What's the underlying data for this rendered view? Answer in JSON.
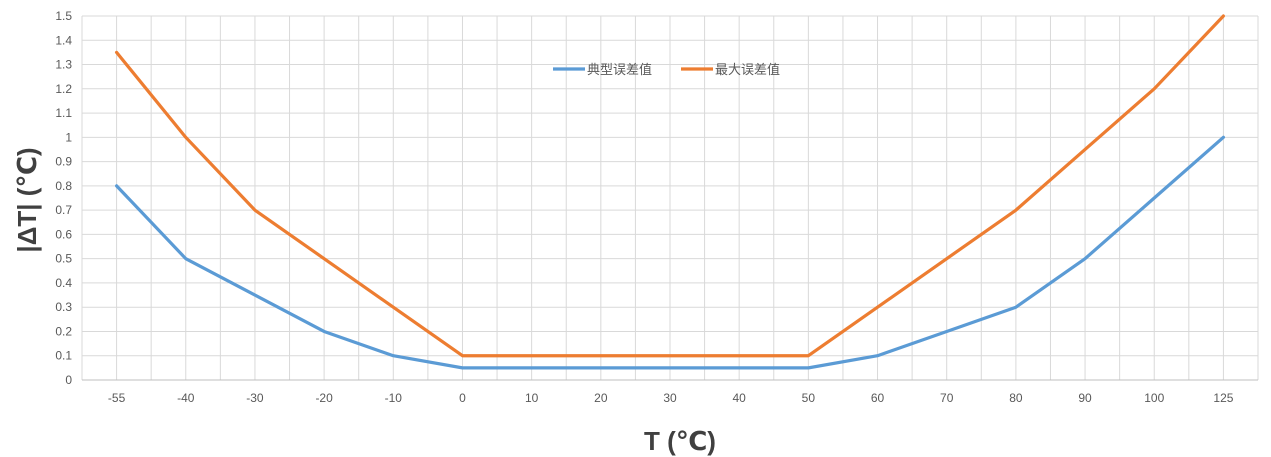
{
  "chart_data": {
    "type": "line",
    "xlabel": "T (℃)",
    "ylabel": "|ΔT| (℃)",
    "categories": [
      "-55",
      "-40",
      "-30",
      "-20",
      "-10",
      "0",
      "10",
      "20",
      "30",
      "40",
      "50",
      "60",
      "70",
      "80",
      "90",
      "100",
      "125"
    ],
    "ylim": [
      0,
      1.5
    ],
    "yticks": [
      "0",
      "0.1",
      "0.2",
      "0.3",
      "0.4",
      "0.5",
      "0.6",
      "0.7",
      "0.8",
      "0.9",
      "1",
      "1.1",
      "1.2",
      "1.3",
      "1.4",
      "1.5"
    ],
    "grid": true,
    "legend_position": "top-center",
    "series": [
      {
        "name": "典型误差值",
        "color": "#5B9BD5",
        "values": [
          0.8,
          0.5,
          0.35,
          0.2,
          0.1,
          0.05,
          0.05,
          0.05,
          0.05,
          0.05,
          0.05,
          0.1,
          0.2,
          0.3,
          0.5,
          0.75,
          1.0
        ]
      },
      {
        "name": "最大误差值",
        "color": "#ED7D31",
        "values": [
          1.35,
          1.0,
          0.7,
          0.5,
          0.3,
          0.1,
          0.1,
          0.1,
          0.1,
          0.1,
          0.1,
          0.3,
          0.5,
          0.7,
          0.95,
          1.2,
          1.5
        ]
      }
    ]
  }
}
